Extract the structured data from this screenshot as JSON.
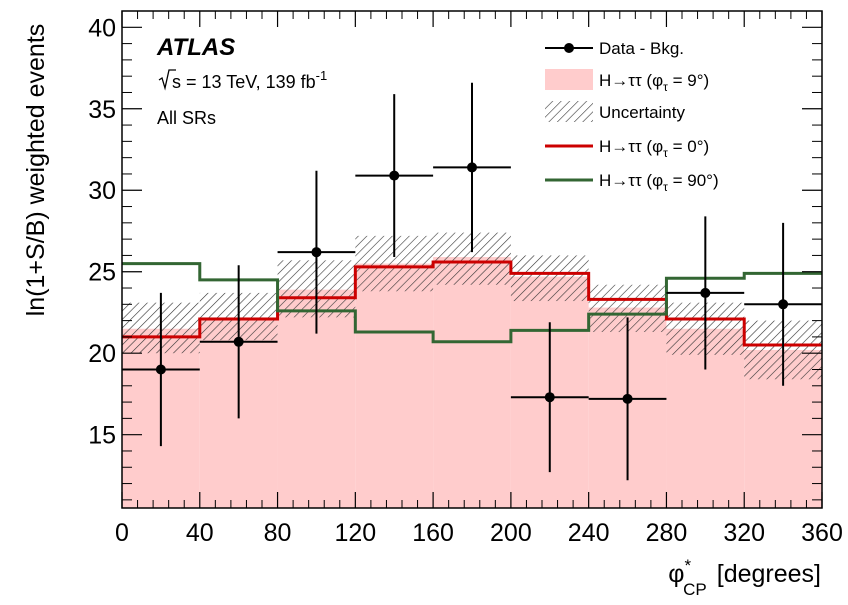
{
  "chart_data": {
    "type": "histogram",
    "xlabel": "[degrees]",
    "xlabel_symbol": "φ",
    "xlabel_sup": "*",
    "xlabel_sub": "CP",
    "ylabel": "ln(1+S/B) weighted events",
    "xlim": [
      0,
      360
    ],
    "ylim": [
      10.5,
      41
    ],
    "x_ticks": [
      0,
      40,
      80,
      120,
      160,
      200,
      240,
      280,
      320,
      360
    ],
    "y_ticks": [
      15,
      20,
      25,
      30,
      35,
      40
    ],
    "bin_edges": [
      0,
      40,
      80,
      120,
      160,
      200,
      240,
      280,
      320,
      360
    ],
    "annotations": {
      "experiment": "ATLAS",
      "energy_prefix": "s = 13 TeV, 139 fb",
      "energy_sup": "-1",
      "region": "All SRs"
    },
    "legend": {
      "placement": "top-right",
      "entries": [
        {
          "key": "data",
          "label": "Data - Bkg."
        },
        {
          "key": "fill",
          "label": "H→ττ (φ",
          "sub": "τ",
          "tail": " = 9°)"
        },
        {
          "key": "unc",
          "label": "Uncertainty"
        },
        {
          "key": "red",
          "label": "H→ττ (φ",
          "sub": "τ",
          "tail": " = 0°)"
        },
        {
          "key": "green",
          "label": "H→ττ (φ",
          "sub": "τ",
          "tail": " = 90°)"
        }
      ]
    },
    "colors": {
      "signal_fill": "#ffcccc",
      "phi0": "#cc0000",
      "phi90": "#336633",
      "data": "#000000"
    },
    "series": [
      {
        "name": "Data - Bkg.",
        "type": "points",
        "x": [
          20,
          60,
          100,
          140,
          180,
          220,
          260,
          300,
          340
        ],
        "y": [
          19.0,
          20.7,
          26.2,
          30.9,
          31.4,
          17.3,
          17.2,
          23.7,
          23.0
        ],
        "err": [
          4.7,
          4.7,
          5.0,
          5.0,
          5.2,
          4.6,
          5.0,
          4.7,
          5.0
        ]
      },
      {
        "name": "H→ττ (φτ = 9°)",
        "type": "filled-step",
        "values": [
          21.5,
          22.2,
          23.9,
          25.5,
          25.9,
          24.7,
          22.8,
          21.5,
          20.2
        ]
      },
      {
        "name": "Uncertainty",
        "type": "hatched-band",
        "low": [
          20.0,
          20.8,
          22.2,
          23.8,
          24.2,
          23.2,
          21.3,
          19.9,
          18.4
        ],
        "high": [
          23.1,
          23.7,
          25.7,
          27.2,
          27.4,
          26.0,
          24.2,
          23.1,
          22.0
        ]
      },
      {
        "name": "H→ττ (φτ = 0°)",
        "type": "step",
        "values": [
          21.0,
          22.1,
          23.4,
          25.3,
          25.6,
          24.9,
          23.3,
          22.1,
          20.5
        ]
      },
      {
        "name": "H→ττ (φτ = 90°)",
        "type": "step",
        "values": [
          25.5,
          24.5,
          22.6,
          21.3,
          20.7,
          21.4,
          22.4,
          24.6,
          24.9
        ]
      }
    ]
  }
}
